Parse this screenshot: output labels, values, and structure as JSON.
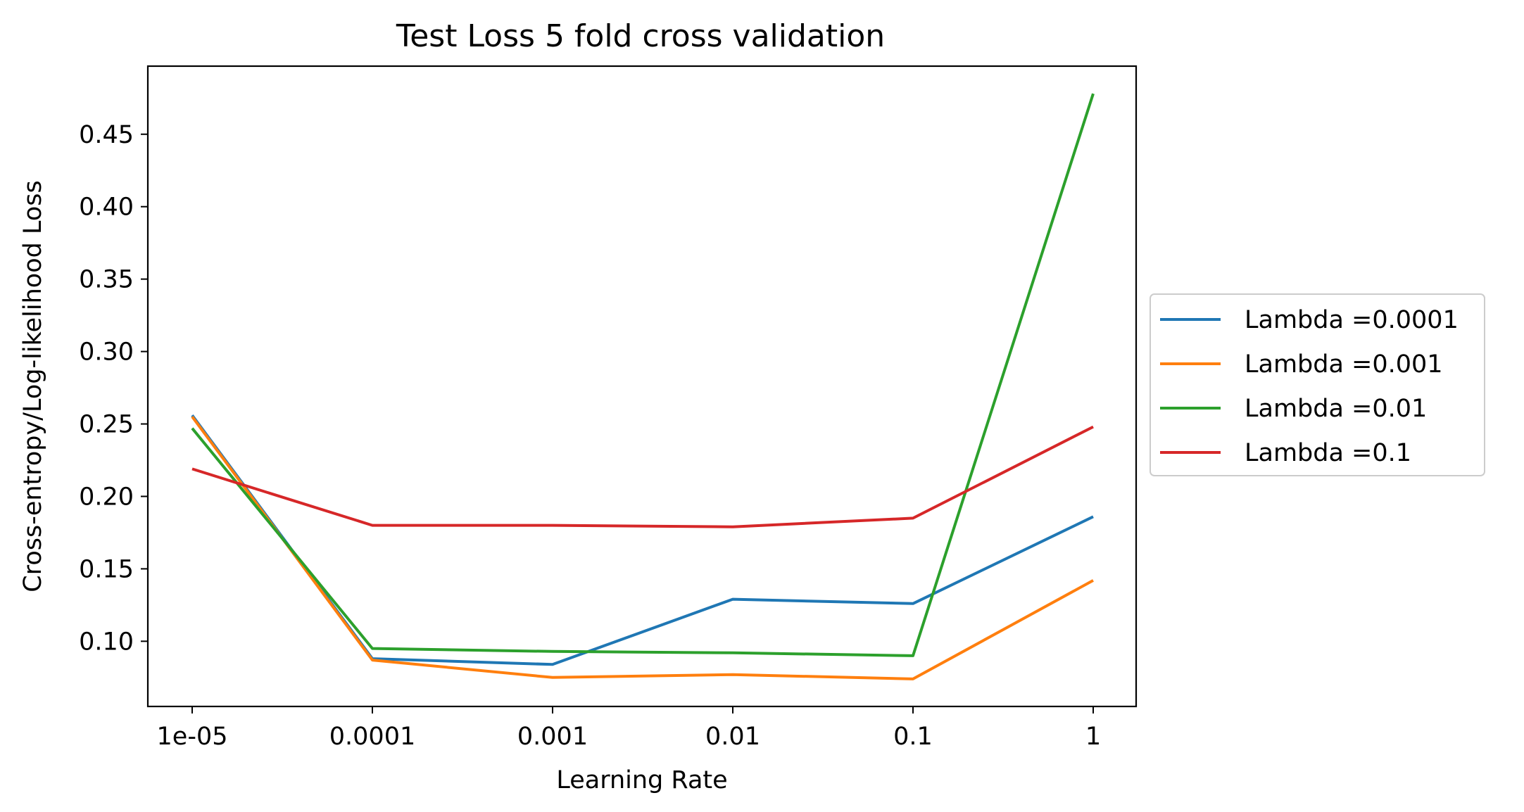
{
  "chart_data": {
    "type": "line",
    "title": "Test Loss 5 fold cross validation",
    "xlabel": "Learning Rate",
    "ylabel": "Cross-entropy/Log-likelihood Loss",
    "categories": [
      "1e-05",
      "0.0001",
      "0.001",
      "0.01",
      "0.1",
      "1"
    ],
    "yticks": [
      "0.10",
      "0.15",
      "0.20",
      "0.25",
      "0.30",
      "0.35",
      "0.40",
      "0.45"
    ],
    "ylim": [
      0.055,
      0.497
    ],
    "grid": false,
    "legend_position": "right, outside plot",
    "series": [
      {
        "name": "Lambda =0.0001",
        "color": "#1f77b4",
        "values": [
          0.256,
          0.088,
          0.084,
          0.129,
          0.126,
          0.186
        ]
      },
      {
        "name": "Lambda =0.001",
        "color": "#ff7f0e",
        "values": [
          0.255,
          0.087,
          0.075,
          0.077,
          0.074,
          0.142
        ]
      },
      {
        "name": "Lambda =0.01",
        "color": "#2ca02c",
        "values": [
          0.247,
          0.095,
          0.093,
          0.092,
          0.09,
          0.478
        ]
      },
      {
        "name": "Lambda =0.1",
        "color": "#d62728",
        "values": [
          0.219,
          0.18,
          0.18,
          0.179,
          0.185,
          0.248
        ]
      }
    ]
  }
}
